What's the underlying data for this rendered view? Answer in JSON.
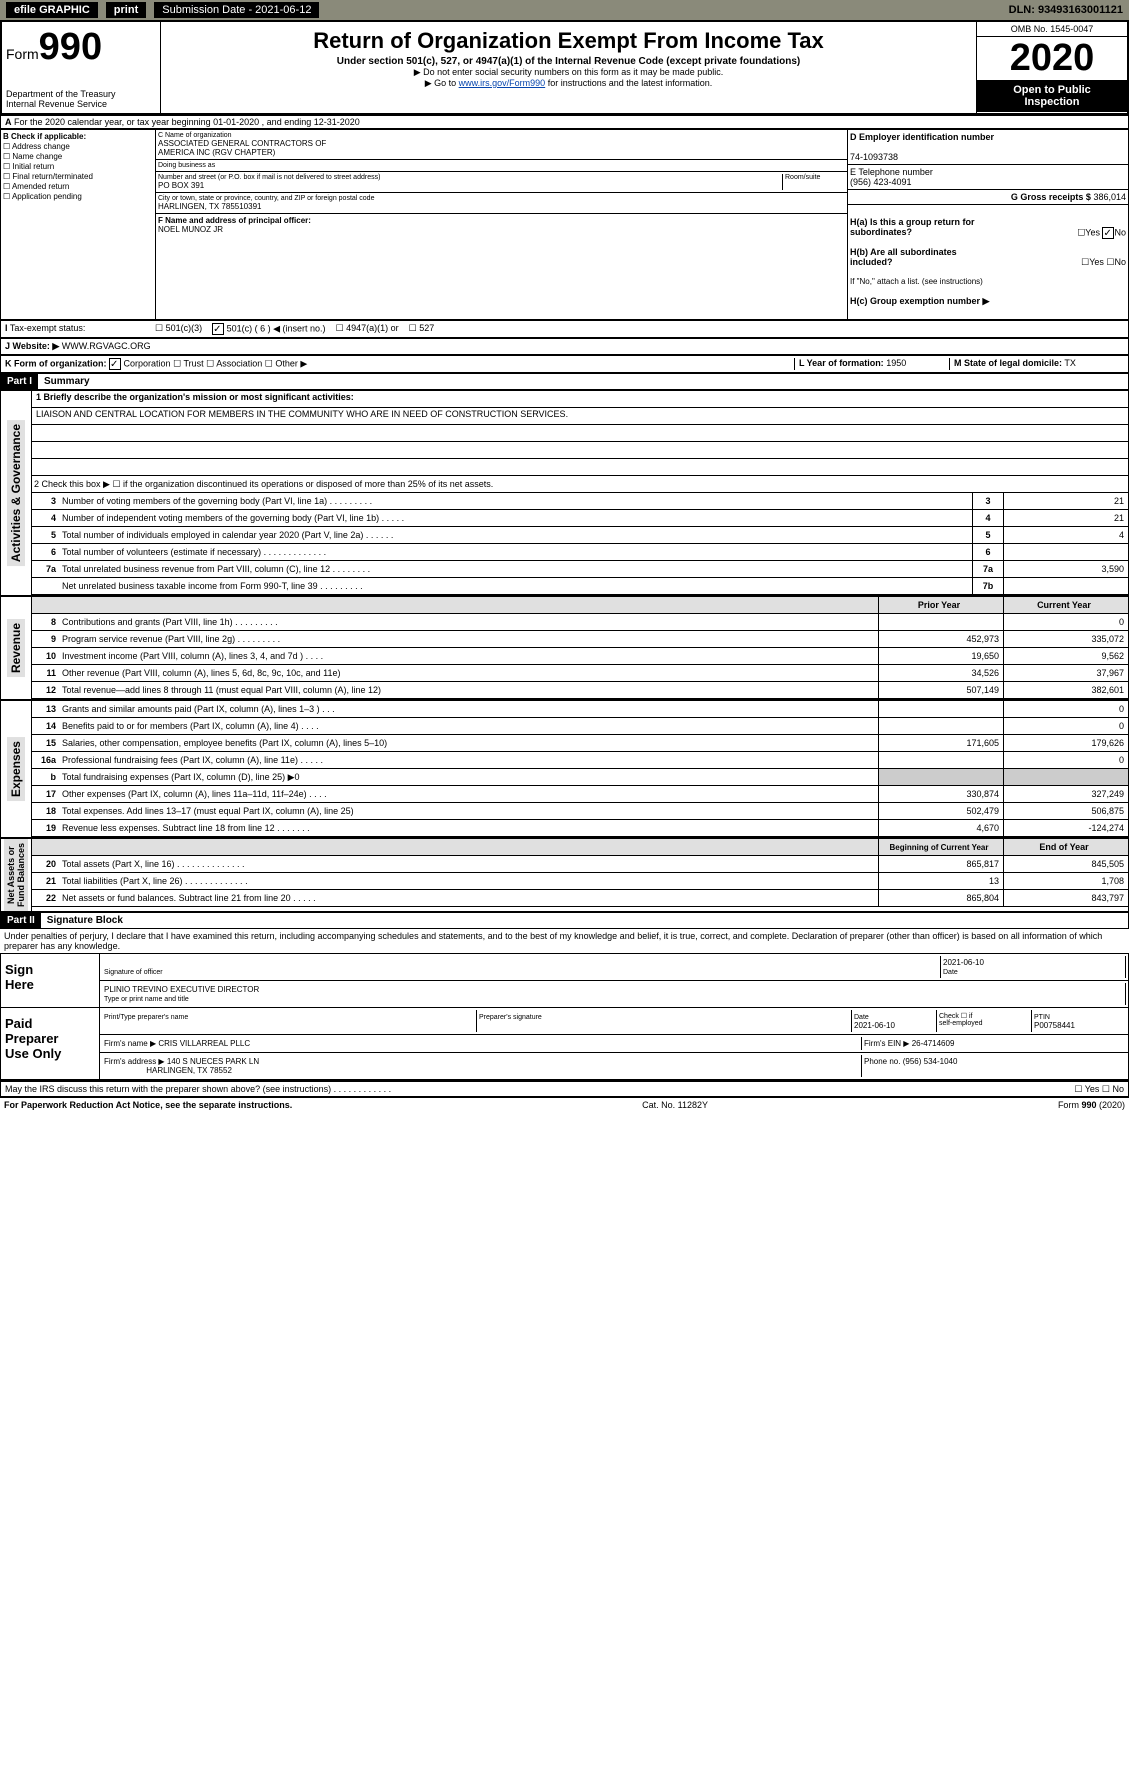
{
  "topbar": {
    "efile": "efile GRAPHIC",
    "print": "print",
    "subLabel": "Submission Date - 2021-06-12",
    "dln": "DLN: 93493163001121"
  },
  "header": {
    "form": "Form",
    "n990": "990",
    "title": "Return of Organization Exempt From Income Tax",
    "sub": "Under section 501(c), 527, or 4947(a)(1) of the Internal Revenue Code (except private foundations)",
    "note1": "▶ Do not enter social security numbers on this form as it may be made public.",
    "note2a": "▶ Go to ",
    "note2link": "www.irs.gov/Form990",
    "note2b": " for instructions and the latest information.",
    "dept": "Department of the Treasury\nInternal Revenue Service",
    "omb": "OMB No. 1545-0047",
    "year": "2020",
    "open": "Open to Public\nInspection"
  },
  "periodA": "For the 2020 calendar year, or tax year beginning 01-01-2020    , and ending 12-31-2020",
  "boxB": {
    "title": "B Check if applicable:",
    "opts": [
      "Address change",
      "Name change",
      "Initial return",
      "Final return/terminated",
      "Amended return",
      "Application pending"
    ]
  },
  "boxC": {
    "nameLbl": "C Name of organization",
    "name": "ASSOCIATED GENERAL CONTRACTORS OF\nAMERICA INC (RGV CHAPTER)",
    "dbaLbl": "Doing business as",
    "dba": "",
    "addrLbl": "Number and street (or P.O. box if mail is not delivered to street address)",
    "room": "Room/suite",
    "addr": "PO BOX 391",
    "cityLbl": "City or town, state or province, country, and ZIP or foreign postal code",
    "city": "HARLINGEN, TX  785510391",
    "fLbl": "F Name and address of principal officer:",
    "fName": "NOEL MUNOZ JR"
  },
  "boxD": {
    "lbl": "D Employer identification number",
    "val": "74-1093738"
  },
  "boxE": {
    "lbl": "E Telephone number",
    "val": "(956) 423-4091"
  },
  "boxG": {
    "lbl": "G Gross receipts $",
    "val": "386,014"
  },
  "boxH": {
    "a": "H(a)  Is this a group return for\n        subordinates?",
    "aYes": "Yes",
    "aNo": "No",
    "aChecked": "No",
    "b": "H(b)  Are all subordinates\n        included?",
    "bYes": "Yes",
    "bNo": "No",
    "bNote": "If \"No,\" attach a list. (see instructions)",
    "c": "H(c)  Group exemption number ▶"
  },
  "taxStatus": {
    "lbl": "Tax-exempt status:",
    "c3": "501(c)(3)",
    "c": "501(c) ( 6 ) ◀ (insert no.)",
    "a1": "4947(a)(1) or",
    "s527": "527",
    "checked": "c"
  },
  "boxJ": {
    "lbl": "Website: ▶",
    "val": "WWW.RGVAGC.ORG"
  },
  "boxK": {
    "lbl": "K Form of organization:",
    "corp": "Corporation",
    "trust": "Trust",
    "assoc": "Association",
    "other": "Other ▶",
    "checked": "corp"
  },
  "boxL": {
    "lbl": "L Year of formation:",
    "val": "1950"
  },
  "boxM": {
    "lbl": "M State of legal domicile:",
    "val": "TX"
  },
  "part1": {
    "bar": "Part I",
    "title": "Summary"
  },
  "summary": {
    "l1": "1  Briefly describe the organization's mission or most significant activities:",
    "mission": "LIAISON AND CENTRAL LOCATION FOR MEMBERS IN THE COMMUNITY WHO ARE IN NEED OF CONSTRUCTION SERVICES.",
    "l2": "2   Check this box ▶ ☐  if the organization discontinued its operations or disposed of more than 25% of its net assets.",
    "rows": [
      {
        "n": "3",
        "d": "Number of voting members of the governing body (Part VI, line 1a)  .   .   .   .   .   .   .   .   .",
        "b": "3",
        "v": "21"
      },
      {
        "n": "4",
        "d": "Number of independent voting members of the governing body (Part VI, line 1b)  .   .   .   .   .",
        "b": "4",
        "v": "21"
      },
      {
        "n": "5",
        "d": "Total number of individuals employed in calendar year 2020 (Part V, line 2a)  .   .   .   .   .   .",
        "b": "5",
        "v": "4"
      },
      {
        "n": "6",
        "d": "Total number of volunteers (estimate if necessary)  .   .   .   .   .   .   .   .   .   .   .   .   .",
        "b": "6",
        "v": ""
      },
      {
        "n": "7a",
        "d": "Total unrelated business revenue from Part VIII, column (C), line 12  .   .   .   .   .   .   .   .",
        "b": "7a",
        "v": "3,590"
      },
      {
        "n": "",
        "d": "Net unrelated business taxable income from Form 990-T, line 39  .   .   .   .   .   .   .   .   .",
        "b": "7b",
        "v": ""
      }
    ]
  },
  "revExp": {
    "hdrPrior": "Prior Year",
    "hdrCurr": "Current Year",
    "revenue": [
      {
        "n": "8",
        "d": "Contributions and grants (Part VIII, line 1h)  .   .   .   .   .   .   .   .   .",
        "p": "",
        "c": "0"
      },
      {
        "n": "9",
        "d": "Program service revenue (Part VIII, line 2g)  .   .   .   .   .   .   .   .   .",
        "p": "452,973",
        "c": "335,072"
      },
      {
        "n": "10",
        "d": "Investment income (Part VIII, column (A), lines 3, 4, and 7d )  .   .   .   .",
        "p": "19,650",
        "c": "9,562"
      },
      {
        "n": "11",
        "d": "Other revenue (Part VIII, column (A), lines 5, 6d, 8c, 9c, 10c, and 11e)",
        "p": "34,526",
        "c": "37,967"
      },
      {
        "n": "12",
        "d": "Total revenue—add lines 8 through 11 (must equal Part VIII, column (A), line 12)",
        "p": "507,149",
        "c": "382,601"
      }
    ],
    "expenses": [
      {
        "n": "13",
        "d": "Grants and similar amounts paid (Part IX, column (A), lines 1–3 )  .   .   .",
        "p": "",
        "c": "0"
      },
      {
        "n": "14",
        "d": "Benefits paid to or for members (Part IX, column (A), line 4)  .   .   .   .",
        "p": "",
        "c": "0"
      },
      {
        "n": "15",
        "d": "Salaries, other compensation, employee benefits (Part IX, column (A), lines 5–10)",
        "p": "171,605",
        "c": "179,626"
      },
      {
        "n": "16a",
        "d": "Professional fundraising fees (Part IX, column (A), line 11e)  .   .   .   .   .",
        "p": "",
        "c": "0"
      },
      {
        "n": "b",
        "d": "Total fundraising expenses (Part IX, column (D), line 25) ▶0",
        "p": "—",
        "c": "—"
      },
      {
        "n": "17",
        "d": "Other expenses (Part IX, column (A), lines 11a–11d, 11f–24e)  .   .   .   .",
        "p": "330,874",
        "c": "327,249"
      },
      {
        "n": "18",
        "d": "Total expenses. Add lines 13–17 (must equal Part IX, column (A), line 25)",
        "p": "502,479",
        "c": "506,875"
      },
      {
        "n": "19",
        "d": "Revenue less expenses. Subtract line 18 from line 12  .   .   .   .   .   .   .",
        "p": "4,670",
        "c": "-124,274"
      }
    ],
    "hdrBeg": "Beginning of Current Year",
    "hdrEnd": "End of Year",
    "netassets": [
      {
        "n": "20",
        "d": "Total assets (Part X, line 16)  .   .   .   .   .   .   .   .   .   .   .   .   .   .",
        "p": "865,817",
        "c": "845,505"
      },
      {
        "n": "21",
        "d": "Total liabilities (Part X, line 26)  .   .   .   .   .   .   .   .   .   .   .   .   .",
        "p": "13",
        "c": "1,708"
      },
      {
        "n": "22",
        "d": "Net assets or fund balances. Subtract line 21 from line 20  .   .   .   .   .",
        "p": "865,804",
        "c": "843,797"
      }
    ]
  },
  "sideLabels": {
    "ag": "Activities & Governance",
    "rev": "Revenue",
    "exp": "Expenses",
    "na": "Net Assets or\nFund Balances"
  },
  "part2": {
    "bar": "Part II",
    "title": "Signature Block",
    "decl": "Under penalties of perjury, I declare that I have examined this return, including accompanying schedules and statements, and to the best of my knowledge and belief, it is true, correct, and complete. Declaration of preparer (other than officer) is based on all information of which preparer has any knowledge."
  },
  "sign": {
    "here": "Sign\nHere",
    "sigOff": "Signature of officer",
    "date": "2021-06-10",
    "dateLbl": "Date",
    "name": "PLINIO TREVINO  EXECUTIVE DIRECTOR",
    "nameLbl": "Type or print name and title"
  },
  "paid": {
    "lbl": "Paid\nPreparer\nUse Only",
    "h1": "Print/Type preparer's name",
    "h2": "Preparer's signature",
    "h3": "Date",
    "h3v": "2021-06-10",
    "h4": "Check ☐ if\nself-employed",
    "h5": "PTIN",
    "h5v": "P00758441",
    "firmLbl": "Firm's name    ▶",
    "firm": "CRIS VILLARREAL PLLC",
    "einLbl": "Firm's EIN ▶",
    "ein": "26-4714609",
    "addrLbl": "Firm's address ▶",
    "addr": "140 S NUECES PARK LN",
    "city": "HARLINGEN, TX  78552",
    "phLbl": "Phone no.",
    "ph": "(956) 534-1040"
  },
  "discuss": "May the IRS discuss this return with the preparer shown above? (see instructions)   .   .   .   .   .   .   .   .   .   .   .   .",
  "discussYes": "Yes",
  "discussNo": "No",
  "footer": {
    "pra": "For Paperwork Reduction Act Notice, see the separate instructions.",
    "cat": "Cat. No. 11282Y",
    "form": "Form 990 (2020)"
  }
}
